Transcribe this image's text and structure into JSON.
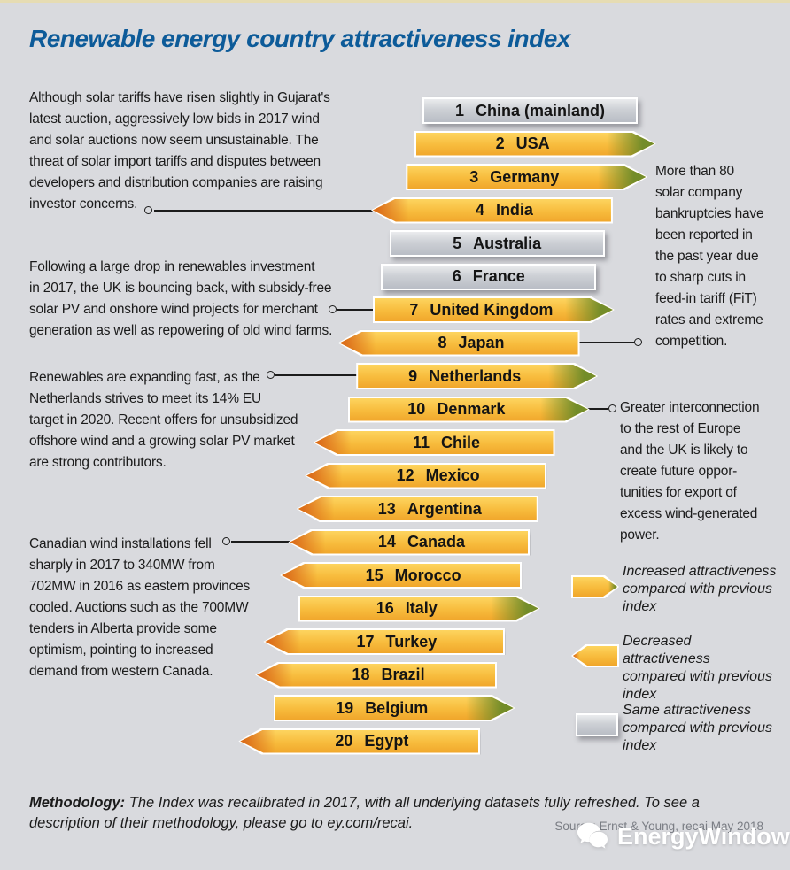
{
  "page": {
    "title": "Renewable energy country attractiveness index",
    "background_color": "#d9dade",
    "title_color": "#0d5b99"
  },
  "chart_data": {
    "type": "bar",
    "title": "Renewable energy country attractiveness index",
    "description": "Top 20 ranked countries shown as arrow bars; arrow direction/color encodes movement versus the previous index",
    "legend_position": "right",
    "rankings": [
      {
        "rank": 1,
        "country": "China (mainland)",
        "movement": "same"
      },
      {
        "rank": 2,
        "country": "USA",
        "movement": "increased"
      },
      {
        "rank": 3,
        "country": "Germany",
        "movement": "increased"
      },
      {
        "rank": 4,
        "country": "India",
        "movement": "decreased"
      },
      {
        "rank": 5,
        "country": "Australia",
        "movement": "same"
      },
      {
        "rank": 6,
        "country": "France",
        "movement": "same"
      },
      {
        "rank": 7,
        "country": "United Kingdom",
        "movement": "increased"
      },
      {
        "rank": 8,
        "country": "Japan",
        "movement": "decreased"
      },
      {
        "rank": 9,
        "country": "Netherlands",
        "movement": "increased"
      },
      {
        "rank": 10,
        "country": "Denmark",
        "movement": "increased"
      },
      {
        "rank": 11,
        "country": "Chile",
        "movement": "decreased"
      },
      {
        "rank": 12,
        "country": "Mexico",
        "movement": "decreased"
      },
      {
        "rank": 13,
        "country": "Argentina",
        "movement": "decreased"
      },
      {
        "rank": 14,
        "country": "Canada",
        "movement": "decreased"
      },
      {
        "rank": 15,
        "country": "Morocco",
        "movement": "decreased"
      },
      {
        "rank": 16,
        "country": "Italy",
        "movement": "increased"
      },
      {
        "rank": 17,
        "country": "Turkey",
        "movement": "decreased"
      },
      {
        "rank": 18,
        "country": "Brazil",
        "movement": "decreased"
      },
      {
        "rank": 19,
        "country": "Belgium",
        "movement": "increased"
      },
      {
        "rank": 20,
        "country": "Egypt",
        "movement": "decreased"
      }
    ],
    "colors": {
      "bar_body": "#f7bb3c",
      "increased_tip": "#6f8b28",
      "decreased_tip": "#db6c1a",
      "same_bar": "#c6c9cf"
    }
  },
  "annotations": {
    "left": [
      {
        "target": "India",
        "text": "Although solar tariffs have risen slightly in Gujarat's\nlatest auction, aggressively low bids in 2017 wind\nand solar auctions now seem unsustainable. The\nthreat of solar import tariffs and disputes between\ndevelopers and distribution companies are raising\ninvestor concerns."
      },
      {
        "target": "United Kingdom",
        "text": "Following a large drop in renewables investment\nin 2017, the UK is bouncing back, with subsidy-free\nsolar PV and onshore wind projects for merchant\ngeneration as well as repowering of old wind farms."
      },
      {
        "target": "Netherlands",
        "text": "Renewables are expanding fast, as the\nNetherlands strives to meet its 14% EU\ntarget in 2020. Recent offers for unsubsidized\noffshore wind and a growing solar PV market\nare strong contributors."
      },
      {
        "target": "Canada",
        "text": "Canadian wind installations fell\nsharply in 2017 to 340MW from\n702MW in 2016 as eastern provinces\ncooled. Auctions such as the 700MW\ntenders in Alberta provide some\noptimism, pointing to increased\ndemand from western Canada."
      }
    ],
    "right": [
      {
        "target": "Japan",
        "text": "More than 80\nsolar company\nbankruptcies have\nbeen reported in\nthe past year due\nto sharp cuts in\nfeed-in tariff (FiT)\nrates and extreme\ncompetition."
      },
      {
        "target": "Denmark",
        "text": "Greater interconnection\nto the rest of Europe\nand the UK is likely to\ncreate future oppor-\ntunities for export of\nexcess wind-generated\npower."
      }
    ]
  },
  "legend": [
    {
      "type": "increased",
      "label": "Increased attractiveness\ncompared with previous\nindex"
    },
    {
      "type": "decreased",
      "label": "Decreased attractiveness\ncompared with previous\nindex"
    },
    {
      "type": "same",
      "label": "Same attractiveness\ncompared with previous\nindex"
    }
  ],
  "footer": {
    "methodology_label": "Methodology:",
    "methodology_text": " The Index was recalibrated in 2017, with all underlying datasets fully refreshed. To see a description of their methodology, please go to ey.com/recai.",
    "source": "Source: Ernst & Young, recai May 2018"
  },
  "watermark": {
    "label": "EnergyWindow",
    "icon": "chat-bubble-icon"
  }
}
